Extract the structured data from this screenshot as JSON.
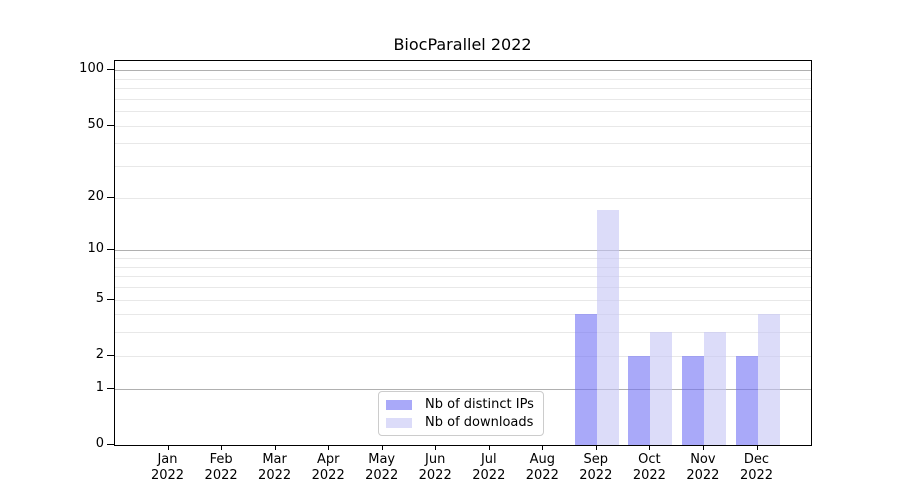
{
  "chart_data": {
    "type": "bar",
    "title": "BiocParallel 2022",
    "categories": [
      "Jan",
      "Feb",
      "Mar",
      "Apr",
      "May",
      "Jun",
      "Jul",
      "Aug",
      "Sep",
      "Oct",
      "Nov",
      "Dec"
    ],
    "category_year": "2022",
    "series": [
      {
        "name": "Nb of distinct IPs",
        "color": "rgba(112,112,245,0.6)",
        "solid_color": "#a9a9f8",
        "values": [
          0,
          0,
          0,
          0,
          0,
          0,
          0,
          0,
          4,
          2,
          2,
          2
        ]
      },
      {
        "name": "Nb of downloads",
        "color": "rgba(197,197,245,0.6)",
        "solid_color": "#dcdcf9",
        "values": [
          0,
          0,
          0,
          0,
          0,
          0,
          0,
          0,
          17,
          3,
          3,
          4
        ]
      }
    ],
    "xlabel": "",
    "ylabel": "",
    "y_scale": "log1p",
    "ylim": [
      0,
      112
    ],
    "y_axis_max": 112,
    "y_ticks": [
      0,
      1,
      2,
      5,
      10,
      20,
      50,
      100
    ],
    "y_major_gridlines": [
      1,
      10,
      100
    ],
    "y_minor_gridlines": [
      2,
      3,
      4,
      5,
      6,
      7,
      8,
      9,
      20,
      30,
      40,
      50,
      60,
      70,
      80,
      90
    ],
    "grid": "horizontal",
    "legend_position": "bottom-center-inside",
    "colors": {
      "spine": "#000000",
      "major_gridline": "#b0b0b0",
      "minor_gridline": "#e8e8e8",
      "text": "#000000",
      "legend_border": "#cccccc",
      "background": "#ffffff"
    }
  }
}
